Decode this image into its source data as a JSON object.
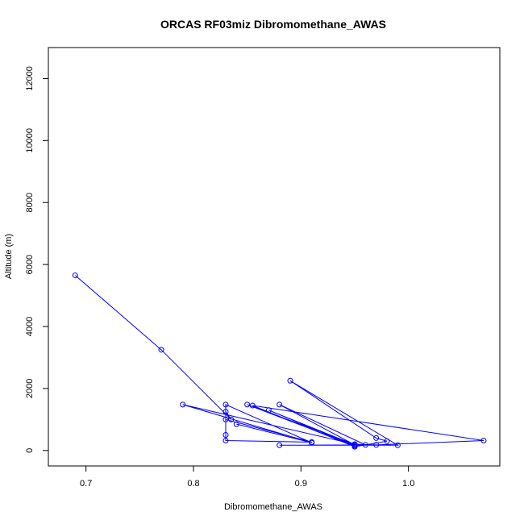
{
  "chart_data": {
    "type": "line",
    "title": "ORCAS RF03miz Dibromomethane_AWAS",
    "xlabel": "Dibromomethane_AWAS",
    "ylabel": "Altitude (m)",
    "xlim": [
      0.665,
      1.085
    ],
    "ylim": [
      -500,
      13000
    ],
    "x_ticks": [
      0.7,
      0.8,
      0.9,
      1.0
    ],
    "x_tick_labels": [
      "0.7",
      "0.8",
      "0.9",
      "1.0"
    ],
    "y_ticks": [
      0,
      2000,
      4000,
      6000,
      8000,
      10000,
      12000
    ],
    "y_tick_labels": [
      "0",
      "2000",
      "4000",
      "6000",
      "8000",
      "10000",
      "12000"
    ],
    "grid": false,
    "legend": "none",
    "series": [
      {
        "color": "#0000ff",
        "marker": "open-circle",
        "points": [
          {
            "x": 0.69,
            "y": 5650
          },
          {
            "x": 0.77,
            "y": 3250
          },
          {
            "x": 0.835,
            "y": 1000
          },
          {
            "x": 0.83,
            "y": 1250
          },
          {
            "x": 0.83,
            "y": 500
          },
          {
            "x": 0.83,
            "y": 320
          },
          {
            "x": 0.91,
            "y": 270
          },
          {
            "x": 0.83,
            "y": 1000
          },
          {
            "x": 0.83,
            "y": 1480
          },
          {
            "x": 0.91,
            "y": 250
          },
          {
            "x": 0.84,
            "y": 850
          },
          {
            "x": 0.91,
            "y": 250
          },
          {
            "x": 0.79,
            "y": 1480
          },
          {
            "x": 0.95,
            "y": 200
          },
          {
            "x": 0.85,
            "y": 1480
          },
          {
            "x": 0.95,
            "y": 150
          },
          {
            "x": 0.87,
            "y": 1300
          },
          {
            "x": 0.95,
            "y": 180
          },
          {
            "x": 0.88,
            "y": 1480
          },
          {
            "x": 0.96,
            "y": 180
          },
          {
            "x": 0.88,
            "y": 170
          },
          {
            "x": 0.99,
            "y": 170
          },
          {
            "x": 0.89,
            "y": 2250
          },
          {
            "x": 0.97,
            "y": 400
          },
          {
            "x": 0.98,
            "y": 300
          },
          {
            "x": 0.95,
            "y": 120
          },
          {
            "x": 0.855,
            "y": 1450
          },
          {
            "x": 1.07,
            "y": 320
          },
          {
            "x": 0.97,
            "y": 180
          },
          {
            "x": 0.95,
            "y": 200
          }
        ]
      }
    ]
  }
}
